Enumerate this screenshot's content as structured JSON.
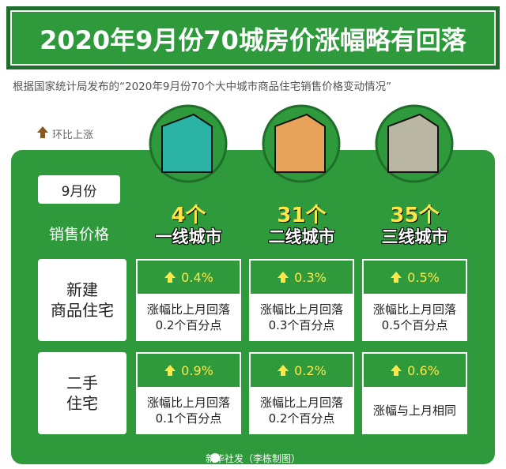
{
  "header": {
    "title": "2020年9月份70城房价涨幅略有回落",
    "subtitle": "根据国家统计局发布的“2020年9月份70个大中城市商品住宅销售价格变动情况”"
  },
  "legend": "环比上涨",
  "table": {
    "month": "9月份",
    "row_label": "销售价格",
    "columns": [
      {
        "count": "4个",
        "name": "一线城市"
      },
      {
        "count": "31个",
        "name": "二线城市"
      },
      {
        "count": "35个",
        "name": "三线城市"
      }
    ],
    "rows": [
      {
        "label": [
          "新建",
          "商品住宅"
        ],
        "cells": [
          {
            "value": "0.4%",
            "note": [
              "涨幅比上月回落",
              "0.2个百分点"
            ]
          },
          {
            "value": "0.3%",
            "note": [
              "涨幅比上月回落",
              "0.3个百分点"
            ]
          },
          {
            "value": "0.5%",
            "note": [
              "涨幅比上月回落",
              "0.5个百分点"
            ]
          }
        ]
      },
      {
        "label": [
          "二手",
          "住宅"
        ],
        "cells": [
          {
            "value": "0.9%",
            "note": [
              "涨幅比上月回落",
              "0.1个百分点"
            ]
          },
          {
            "value": "0.2%",
            "note": [
              "涨幅比上月回落",
              "0.2个百分点"
            ]
          },
          {
            "value": "0.6%",
            "note": [
              "涨幅与上月相同"
            ]
          }
        ]
      }
    ]
  },
  "footer": "新华社发（李栋制图）"
}
